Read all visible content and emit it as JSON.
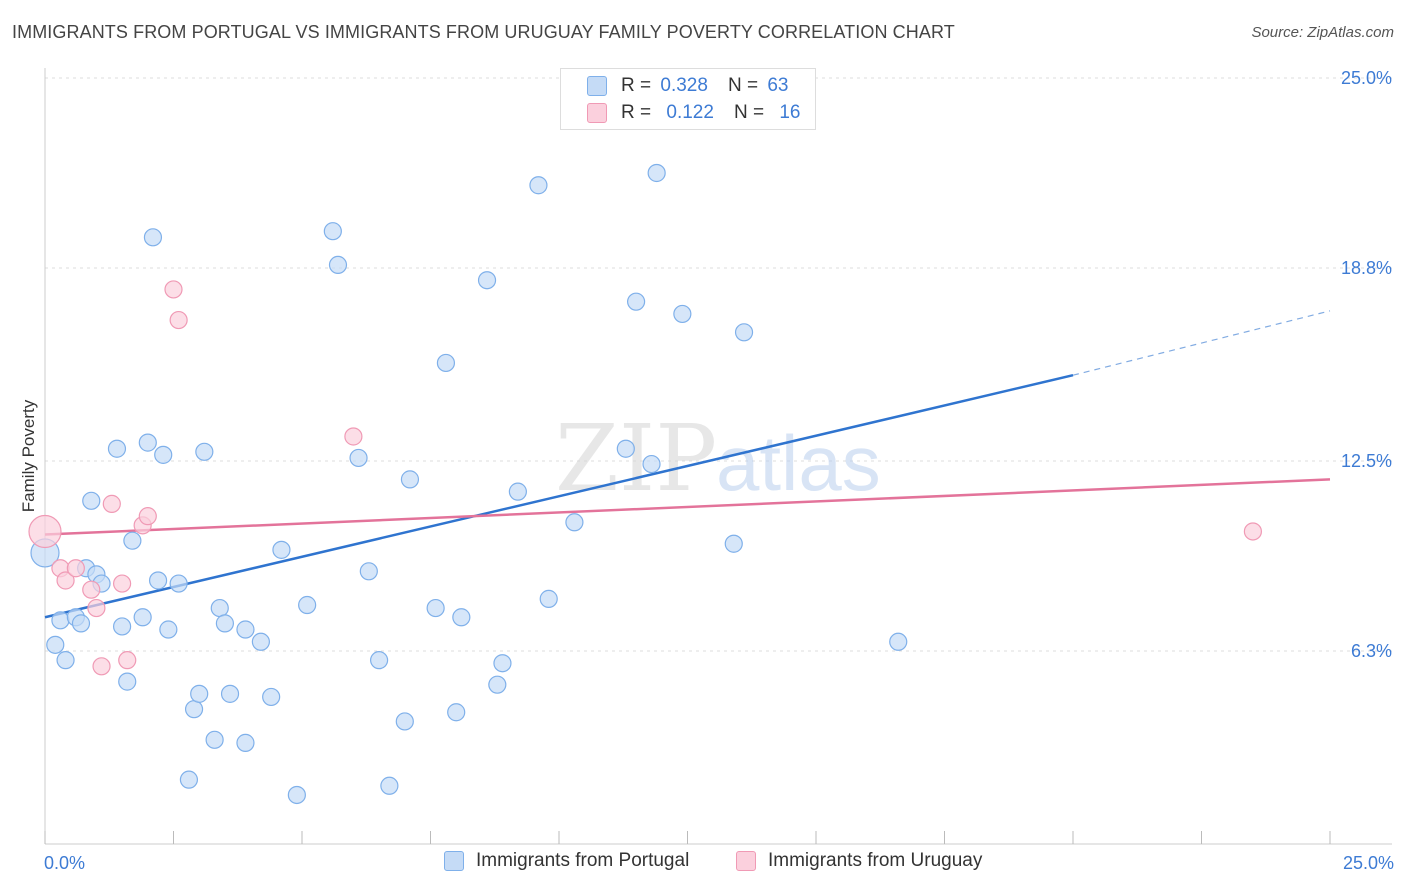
{
  "title": "IMMIGRANTS FROM PORTUGAL VS IMMIGRANTS FROM URUGUAY FAMILY POVERTY CORRELATION CHART",
  "source": "Source: ZipAtlas.com",
  "watermark": {
    "zip": "ZIP",
    "atlas": "atlas"
  },
  "stats": [
    {
      "r_label": "R =",
      "r_value": "0.328",
      "n_label": "N =",
      "n_value": "63",
      "color": "#7fb0ea",
      "fill": "#c5dbf6"
    },
    {
      "r_label": "R =",
      "r_value": "0.122",
      "n_label": "N =",
      "n_value": "16",
      "color": "#f09ab5",
      "fill": "#fbd0dd"
    }
  ],
  "legend": [
    {
      "label": "Immigrants from Portugal",
      "color": "#7fb0ea",
      "fill": "#c5dbf6"
    },
    {
      "label": "Immigrants from Uruguay",
      "color": "#f09ab5",
      "fill": "#fbd0dd"
    }
  ],
  "chart_data": {
    "type": "scatter",
    "title": "IMMIGRANTS FROM PORTUGAL VS IMMIGRANTS FROM URUGUAY FAMILY POVERTY CORRELATION CHART",
    "xlabel": "",
    "ylabel": "Family Poverty",
    "xlim": [
      0,
      25
    ],
    "ylim": [
      0,
      25
    ],
    "x_tick_labels": [
      "0.0%",
      "25.0%"
    ],
    "y_ticks": [
      6.3,
      12.5,
      18.8,
      25.0
    ],
    "y_tick_labels": [
      "6.3%",
      "12.5%",
      "18.8%",
      "25.0%"
    ],
    "grid": true,
    "series": [
      {
        "name": "Immigrants from Portugal",
        "color": "#7fb0ea",
        "fill": "#c5dbf6",
        "trend": {
          "x0": 0,
          "y0": 7.4,
          "x1": 20,
          "y1": 15.3,
          "dash_to_x": 25,
          "dash_to_y": 17.4,
          "color": "#2f74cf"
        },
        "points": [
          [
            0.2,
            6.5
          ],
          [
            0.4,
            6.0
          ],
          [
            0.3,
            7.3
          ],
          [
            0.6,
            7.4
          ],
          [
            0.7,
            7.2
          ],
          [
            0.8,
            9.0
          ],
          [
            0.9,
            11.2
          ],
          [
            1.0,
            8.8
          ],
          [
            1.1,
            8.5
          ],
          [
            1.4,
            12.9
          ],
          [
            1.5,
            7.1
          ],
          [
            1.6,
            5.3
          ],
          [
            1.7,
            9.9
          ],
          [
            1.9,
            7.4
          ],
          [
            2.0,
            13.1
          ],
          [
            2.1,
            19.8
          ],
          [
            2.2,
            8.6
          ],
          [
            2.3,
            12.7
          ],
          [
            2.4,
            7.0
          ],
          [
            2.6,
            8.5
          ],
          [
            2.8,
            2.1
          ],
          [
            2.9,
            4.4
          ],
          [
            3.0,
            4.9
          ],
          [
            3.1,
            12.8
          ],
          [
            3.3,
            3.4
          ],
          [
            3.4,
            7.7
          ],
          [
            3.5,
            7.2
          ],
          [
            3.6,
            4.9
          ],
          [
            3.9,
            7.0
          ],
          [
            3.9,
            3.3
          ],
          [
            4.2,
            6.6
          ],
          [
            4.4,
            4.8
          ],
          [
            4.6,
            9.6
          ],
          [
            4.9,
            1.6
          ],
          [
            5.1,
            7.8
          ],
          [
            5.6,
            20.0
          ],
          [
            5.7,
            18.9
          ],
          [
            6.3,
            8.9
          ],
          [
            6.5,
            6.0
          ],
          [
            6.7,
            1.9
          ],
          [
            7.0,
            4.0
          ],
          [
            7.1,
            11.9
          ],
          [
            7.6,
            7.7
          ],
          [
            7.8,
            15.7
          ],
          [
            8.0,
            4.3
          ],
          [
            8.1,
            7.4
          ],
          [
            8.6,
            18.4
          ],
          [
            8.8,
            5.2
          ],
          [
            8.9,
            5.9
          ],
          [
            9.2,
            11.5
          ],
          [
            9.6,
            21.5
          ],
          [
            9.8,
            8.0
          ],
          [
            10.3,
            10.5
          ],
          [
            11.3,
            12.9
          ],
          [
            11.5,
            17.7
          ],
          [
            11.8,
            12.4
          ],
          [
            11.9,
            21.9
          ],
          [
            12.4,
            17.3
          ],
          [
            13.4,
            9.8
          ],
          [
            13.6,
            16.7
          ],
          [
            16.6,
            6.6
          ],
          [
            0.0,
            9.5
          ],
          [
            6.1,
            12.6
          ]
        ]
      },
      {
        "name": "Immigrants from Uruguay",
        "color": "#f09ab5",
        "fill": "#fbd0dd",
        "trend": {
          "x0": 0,
          "y0": 10.1,
          "x1": 25,
          "y1": 11.9,
          "color": "#e3739a"
        },
        "points": [
          [
            0.0,
            10.2
          ],
          [
            0.3,
            9.0
          ],
          [
            0.4,
            8.6
          ],
          [
            0.6,
            9.0
          ],
          [
            0.9,
            8.3
          ],
          [
            1.0,
            7.7
          ],
          [
            1.1,
            5.8
          ],
          [
            1.3,
            11.1
          ],
          [
            1.5,
            8.5
          ],
          [
            1.6,
            6.0
          ],
          [
            1.9,
            10.4
          ],
          [
            2.0,
            10.7
          ],
          [
            2.5,
            18.1
          ],
          [
            2.6,
            17.1
          ],
          [
            6.0,
            13.3
          ],
          [
            23.5,
            10.2
          ]
        ]
      }
    ]
  }
}
